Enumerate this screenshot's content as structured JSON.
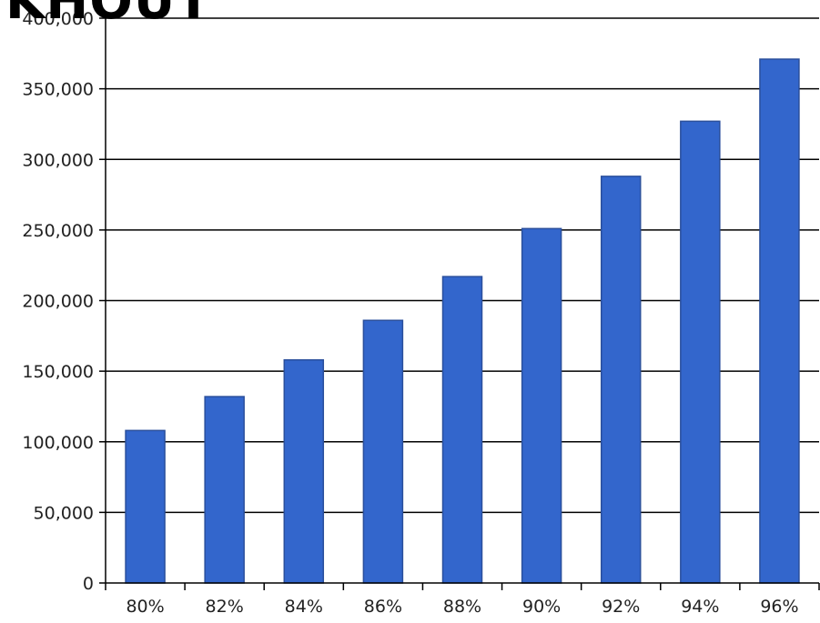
{
  "chart_data": {
    "type": "bar",
    "title": "",
    "xlabel": "",
    "ylabel": "",
    "categories": [
      "80%",
      "82%",
      "84%",
      "86%",
      "88%",
      "90%",
      "92%",
      "94%",
      "96%"
    ],
    "values": [
      108000,
      132000,
      158000,
      186000,
      217000,
      251000,
      288000,
      327000,
      371000
    ],
    "ylim": [
      0,
      400000
    ],
    "yticks": [
      0,
      50000,
      100000,
      150000,
      200000,
      250000,
      300000,
      350000,
      400000
    ],
    "ytick_labels": [
      "0",
      "50,000",
      "100,000",
      "150,000",
      "200,000",
      "250,000",
      "300,000",
      "350,000",
      "400,000"
    ],
    "grid": true,
    "legend": "none",
    "bar_color": "#3366cc",
    "bar_edge_color": "#2a4f9c",
    "grid_color": "#000000",
    "partial_title_text": "KHOUT"
  }
}
